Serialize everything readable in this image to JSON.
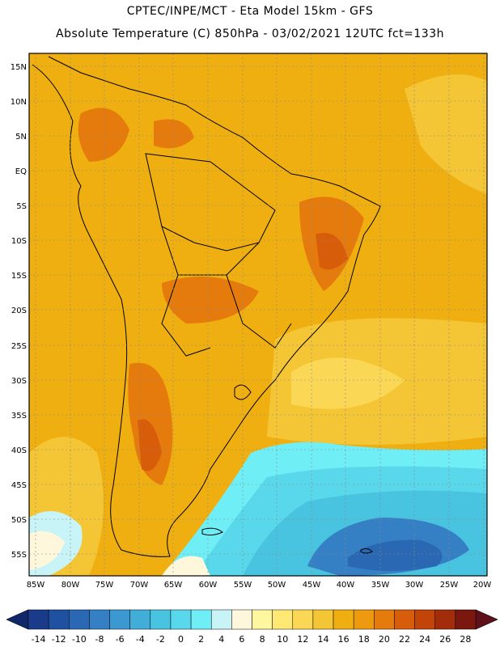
{
  "header": {
    "title_line1": "CPTEC/INPE/MCT -  Eta Model 15km - GFS",
    "title_line2": "Absolute Temperature (C) 850hPa - 03/02/2021 12UTC fct=133h"
  },
  "map": {
    "lat_labels": [
      "15N",
      "10N",
      "5N",
      "EQ",
      "5S",
      "10S",
      "15S",
      "20S",
      "25S",
      "30S",
      "35S",
      "40S",
      "45S",
      "50S",
      "55S"
    ],
    "lon_labels": [
      "85W",
      "80W",
      "75W",
      "70W",
      "65W",
      "60W",
      "55W",
      "50W",
      "45W",
      "40W",
      "35W",
      "30W",
      "25W",
      "20W"
    ]
  },
  "colorbar": {
    "labels": [
      "-14",
      "-12",
      "-10",
      "-8",
      "-6",
      "-4",
      "-2",
      "0",
      "2",
      "4",
      "6",
      "8",
      "10",
      "12",
      "14",
      "16",
      "18",
      "20",
      "22",
      "24",
      "26",
      "28"
    ],
    "colors": [
      "#1a3a8a",
      "#2050a0",
      "#2a68b4",
      "#3580c4",
      "#3c98d0",
      "#40aed8",
      "#48c4e0",
      "#58d8ea",
      "#70eef6",
      "#c8f4f8",
      "#fff7dc",
      "#fff6a0",
      "#ffe874",
      "#fad855",
      "#f4c535",
      "#f0af10",
      "#ed9a10",
      "#e57a0d",
      "#d85d0a",
      "#c24408",
      "#a32d0a",
      "#7a1810"
    ],
    "left_arrow_color": "#10286a",
    "right_arrow_color": "#60101a"
  }
}
